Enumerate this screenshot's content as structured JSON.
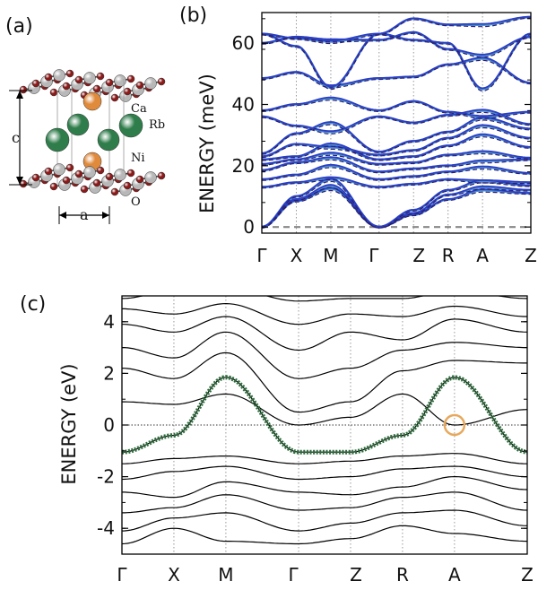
{
  "figure": {
    "panels": [
      {
        "id": "a",
        "label": "(a)"
      },
      {
        "id": "b",
        "label": "(b)"
      },
      {
        "id": "c",
        "label": "(c)"
      }
    ]
  },
  "crystal": {
    "atom_labels": [
      "Ca",
      "Rb",
      "Ni",
      "O"
    ],
    "lattice_labels": {
      "c": "c",
      "a": "a"
    },
    "colors": {
      "Ca": "#e08a3c",
      "Rb": "#2f7d4b",
      "Ni": "#b8b8b8",
      "O": "#8b1a1a"
    }
  },
  "chart_data": [
    {
      "type": "line",
      "panel": "(b)",
      "ylabel": "ENERGY (meV)",
      "xlabel": "",
      "ylim": [
        -2,
        70
      ],
      "yticks": [
        0,
        20,
        40,
        60
      ],
      "x_high_symmetry": [
        "Γ",
        "X",
        "M",
        "Γ",
        "Z",
        "R",
        "A",
        "Z"
      ],
      "x_positions": [
        0,
        0.5,
        1.0,
        1.7,
        2.2,
        2.7,
        3.2,
        3.9
      ],
      "grid": "dotted vertical at high-symmetry points",
      "zero_line": "gray dashed at 0",
      "series": [
        {
          "color": "#2b3ec4",
          "style": "solid"
        },
        {
          "color": "#4a8fd0",
          "style": "solid"
        },
        {
          "color": "#2a1f6e",
          "style": "dashed"
        }
      ],
      "branches": [
        [
          0,
          8.5,
          12.5,
          0,
          4,
          9,
          12,
          11
        ],
        [
          0,
          9,
          13.5,
          0,
          4.5,
          10.5,
          13,
          12
        ],
        [
          0,
          10,
          15.5,
          0,
          5.5,
          12,
          15,
          14.5
        ],
        [
          13,
          14.5,
          16,
          13,
          14,
          15.5,
          15,
          13.5
        ],
        [
          15.5,
          17,
          20,
          15.5,
          16.5,
          18,
          19.5,
          17.5
        ],
        [
          18.5,
          21,
          22.5,
          18,
          19,
          20,
          21.5,
          22
        ],
        [
          20.5,
          22,
          24,
          20.5,
          21,
          23.5,
          24.5,
          22.5
        ],
        [
          22,
          23,
          27,
          22,
          23,
          26.5,
          30,
          26
        ],
        [
          23,
          27,
          26,
          23.5,
          25,
          29,
          33,
          29
        ],
        [
          24,
          30.5,
          34,
          24.5,
          28,
          31,
          35.5,
          32
        ],
        [
          36,
          33,
          31,
          36,
          34,
          36.5,
          38,
          33.5
        ],
        [
          38,
          40,
          42,
          38,
          41,
          37.5,
          36,
          37.5
        ],
        [
          48.5,
          50.5,
          46,
          48.5,
          49,
          53,
          55,
          47
        ],
        [
          63,
          61.5,
          60.5,
          63,
          68,
          66,
          66,
          68.5
        ],
        [
          63,
          59,
          45.5,
          63,
          61,
          60,
          45,
          63
        ],
        [
          60,
          62,
          61,
          61,
          63.5,
          58,
          56,
          62
        ]
      ]
    },
    {
      "type": "line",
      "panel": "(c)",
      "ylabel": "ENERGY (eV)",
      "xlabel": "",
      "ylim": [
        -5,
        5
      ],
      "yticks": [
        -4,
        -2,
        0,
        2,
        4
      ],
      "x_high_symmetry": [
        "Γ",
        "X",
        "M",
        "Γ",
        "Z",
        "R",
        "A",
        "Z"
      ],
      "x_positions": [
        0,
        0.5,
        1.0,
        1.7,
        2.2,
        2.7,
        3.2,
        3.9
      ],
      "grid": "dotted vertical at high-symmetry points",
      "fermi_level": 0,
      "highlighted_band": {
        "color": "#2e6b3c",
        "style": "dotted",
        "values": [
          -1.05,
          -0.4,
          1.85,
          -1.05,
          -1.05,
          -0.4,
          1.85,
          -1.05
        ]
      },
      "marker": {
        "x": 3.2,
        "y": 0,
        "shape": "circle",
        "color": "#e8a85c"
      },
      "bands": [
        [
          -4.6,
          -4.0,
          -4.5,
          -4.6,
          -4.4,
          -3.9,
          -4.2,
          -4.5
        ],
        [
          -4.1,
          -3.6,
          -3.4,
          -4.1,
          -3.8,
          -3.4,
          -3.3,
          -3.9
        ],
        [
          -3.4,
          -3.2,
          -2.7,
          -3.3,
          -3.2,
          -2.8,
          -2.6,
          -3.3
        ],
        [
          -2.6,
          -2.8,
          -2.2,
          -2.6,
          -2.7,
          -2.4,
          -2.0,
          -2.5
        ],
        [
          -2.1,
          -1.8,
          -1.6,
          -2.1,
          -2.0,
          -1.7,
          -1.6,
          -2.0
        ],
        [
          -1.5,
          -1.3,
          -1.2,
          -1.5,
          -1.4,
          -1.2,
          -1.1,
          -1.5
        ],
        [
          -1.05,
          -0.4,
          1.85,
          -1.05,
          -1.05,
          -0.4,
          1.85,
          -1.05
        ],
        [
          0.9,
          0.8,
          1.2,
          0.0,
          0.3,
          1.2,
          0.0,
          0.6
        ],
        [
          2.2,
          1.8,
          2.8,
          0.5,
          0.9,
          2.1,
          2.5,
          2.4
        ],
        [
          3.0,
          2.6,
          3.6,
          1.8,
          2.2,
          2.9,
          3.2,
          3.0
        ],
        [
          3.9,
          3.6,
          4.2,
          2.9,
          3.6,
          3.3,
          4.1,
          3.6
        ],
        [
          4.5,
          4.3,
          4.7,
          3.9,
          4.3,
          4.2,
          4.6,
          4.2
        ],
        [
          4.9,
          5.2,
          5.3,
          4.8,
          4.9,
          4.9,
          5.2,
          4.9
        ]
      ]
    }
  ]
}
